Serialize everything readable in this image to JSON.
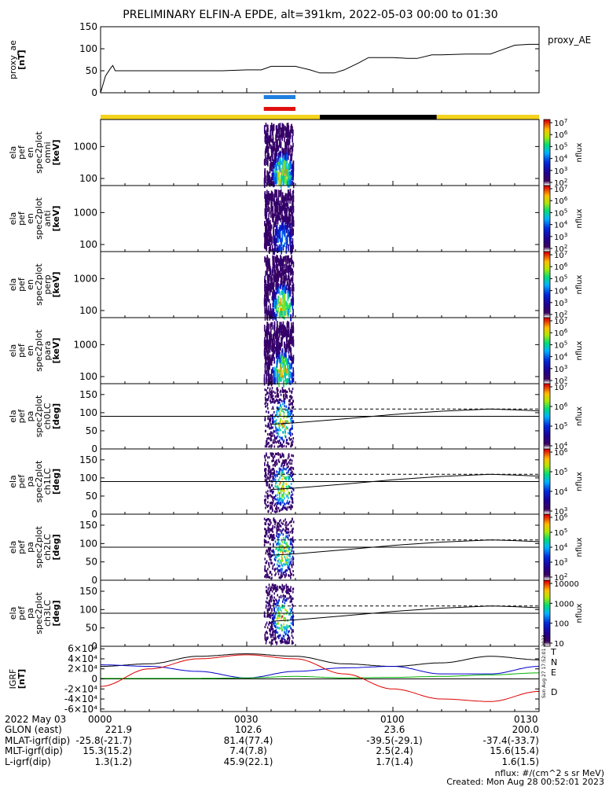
{
  "title": "PRELIMINARY ELFIN-A EPDE, alt=391km, 2022-05-03 00:00 to 01:30",
  "time_axis": {
    "date_label": "2022 May 03",
    "ticks": [
      "0000",
      "0030",
      "0100",
      "0130"
    ],
    "minutes": [
      0,
      30,
      60,
      90
    ]
  },
  "rows": [
    {
      "label": "GLON (east)",
      "values": [
        "221.9",
        "102.6",
        "23.6",
        "200.0"
      ]
    },
    {
      "label": "MLAT-igrf(dip)",
      "values": [
        "-25.8(-21.7)",
        "81.4(77.4)",
        "-39.5(-29.1)",
        "-37.4(-33.7)"
      ]
    },
    {
      "label": "MLT-igrf(dip)",
      "values": [
        "15.3(15.2)",
        "7.4(7.8)",
        "2.5(2.4)",
        "15.6(15.4)"
      ]
    },
    {
      "label": "L-igrf(dip)",
      "values": [
        "1.3(1.2)",
        "45.9(22.1)",
        "1.7(1.4)",
        "1.6(1.5)"
      ]
    }
  ],
  "footnote_units": "nflux: #/(cm^2 s sr MeV)",
  "footnote_created": "Created: Mon Aug 28 00:52:01 2023",
  "side_stamp": "Sun Aug 27 17:52:01 2023",
  "colors": {
    "orbit_bar_day": "#f4d31c",
    "orbit_bar_night": "#000000",
    "marker_top": "#1e7fe0",
    "marker_bottom": "#e01010"
  },
  "orbit_bar": [
    {
      "start": 0,
      "end": 30,
      "color": "#f4d31c"
    },
    {
      "start": 30,
      "end": 45,
      "color": "#f4d31c"
    },
    {
      "start": 45,
      "end": 69,
      "color": "#000000"
    },
    {
      "start": 69,
      "end": 90,
      "color": "#f4d31c"
    }
  ],
  "markers": [
    {
      "start": 33.5,
      "end": 40,
      "color": "#1e7fe0"
    },
    {
      "start": 33.5,
      "end": 40,
      "color": "#e01010"
    }
  ],
  "chart_data": [
    {
      "type": "line",
      "panel": "proxy_ae",
      "ylabel": [
        "proxy_ae",
        "[nT]"
      ],
      "legend": "proxy_AE",
      "ylim": [
        0,
        150
      ],
      "yticks": [
        0,
        50,
        100,
        150
      ],
      "x": [
        0,
        1,
        2,
        2.5,
        3,
        5,
        10,
        15,
        20,
        25,
        30,
        33,
        35,
        40,
        43,
        45,
        48,
        50,
        53,
        55,
        60,
        63,
        65,
        68,
        70,
        75,
        80,
        85,
        88,
        90
      ],
      "values": [
        0,
        38,
        55,
        62,
        50,
        50,
        50,
        50,
        50,
        50,
        52,
        52,
        60,
        60,
        52,
        45,
        45,
        52,
        68,
        80,
        80,
        78,
        78,
        86,
        86,
        88,
        88,
        108,
        110,
        110
      ]
    },
    {
      "type": "heatmap",
      "panel": "spec_omni",
      "ylabel": [
        "ela",
        "pef",
        "en",
        "spec2plot",
        "omni",
        "[keV]"
      ],
      "scale": "log",
      "ylim": [
        60,
        7000
      ],
      "yticks": [
        100,
        1000
      ],
      "colorbar": {
        "label": "nflux",
        "type": "log",
        "ticks": [
          "10^2",
          "10^3",
          "10^4",
          "10^5",
          "10^6",
          "10^7"
        ]
      },
      "activity": [
        33.5,
        39.5
      ]
    },
    {
      "type": "heatmap",
      "panel": "spec_anti",
      "ylabel": [
        "ela",
        "pef",
        "en",
        "spec2plot",
        "anti",
        "[keV]"
      ],
      "scale": "log",
      "ylim": [
        60,
        7000
      ],
      "yticks": [
        100,
        1000
      ],
      "colorbar": {
        "label": "nflux",
        "type": "log",
        "ticks": [
          "10^2",
          "10^3",
          "10^4",
          "10^5",
          "10^6",
          "10^7"
        ]
      },
      "activity": [
        33.5,
        39.5
      ]
    },
    {
      "type": "heatmap",
      "panel": "spec_perp",
      "ylabel": [
        "ela",
        "pef",
        "en",
        "spec2plot",
        "perp",
        "[keV]"
      ],
      "scale": "log",
      "ylim": [
        60,
        7000
      ],
      "yticks": [
        100,
        1000
      ],
      "colorbar": {
        "label": "nflux",
        "type": "log",
        "ticks": [
          "10^2",
          "10^3",
          "10^4",
          "10^5",
          "10^6",
          "10^7"
        ]
      },
      "activity": [
        33.5,
        39.5
      ]
    },
    {
      "type": "heatmap",
      "panel": "spec_para",
      "ylabel": [
        "ela",
        "pef",
        "en",
        "spec2plot",
        "para",
        "[keV]"
      ],
      "scale": "log",
      "ylim": [
        60,
        7000
      ],
      "yticks": [
        100,
        1000
      ],
      "colorbar": {
        "label": "nflux",
        "type": "log",
        "ticks": [
          "10^2",
          "10^3",
          "10^4",
          "10^5",
          "10^6",
          "10^7"
        ]
      },
      "activity": [
        33.5,
        39.5
      ]
    },
    {
      "type": "heatmap",
      "panel": "pa_ch0",
      "ylabel": [
        "ela",
        "pef",
        "pa",
        "spec2plot",
        "ch0LC",
        "[deg]"
      ],
      "ylim": [
        0,
        180
      ],
      "yticks": [
        0,
        50,
        100,
        150
      ],
      "colorbar": {
        "label": "nflux",
        "type": "log",
        "ticks": [
          "10^4",
          "10^5",
          "10^6",
          "10^7"
        ]
      },
      "loss_cone_x": [
        35,
        40,
        50,
        60,
        70,
        80,
        85,
        90
      ],
      "loss_cone_values": [
        68,
        72,
        83,
        95,
        104,
        110,
        108,
        105
      ],
      "anti_loss_cone_x": [
        35,
        90
      ],
      "anti_loss_cone_values": [
        110,
        110
      ],
      "activity": [
        33.5,
        39.5
      ]
    },
    {
      "type": "heatmap",
      "panel": "pa_ch1",
      "ylabel": [
        "ela",
        "pef",
        "pa",
        "spec2plot",
        "ch1LC",
        "[deg]"
      ],
      "ylim": [
        0,
        180
      ],
      "yticks": [
        0,
        50,
        100,
        150
      ],
      "colorbar": {
        "label": "nflux",
        "type": "log",
        "ticks": [
          "10^3",
          "10^4",
          "10^5",
          "10^6"
        ]
      },
      "loss_cone_x": [
        35,
        40,
        50,
        60,
        70,
        80,
        85,
        90
      ],
      "loss_cone_values": [
        68,
        72,
        83,
        95,
        104,
        110,
        108,
        105
      ],
      "anti_loss_cone_x": [
        35,
        90
      ],
      "anti_loss_cone_values": [
        110,
        110
      ],
      "activity": [
        33.5,
        39.5
      ]
    },
    {
      "type": "heatmap",
      "panel": "pa_ch2",
      "ylabel": [
        "ela",
        "pef",
        "pa",
        "spec2plot",
        "ch2LC",
        "[deg]"
      ],
      "ylim": [
        0,
        180
      ],
      "yticks": [
        0,
        50,
        100,
        150
      ],
      "colorbar": {
        "label": "nflux",
        "type": "log",
        "ticks": [
          "10^2",
          "10^3",
          "10^4",
          "10^5",
          "10^6"
        ]
      },
      "loss_cone_x": [
        35,
        40,
        50,
        60,
        70,
        80,
        85,
        90
      ],
      "loss_cone_values": [
        68,
        72,
        83,
        95,
        104,
        110,
        108,
        105
      ],
      "anti_loss_cone_x": [
        35,
        90
      ],
      "anti_loss_cone_values": [
        110,
        110
      ],
      "activity": [
        33.5,
        39.5
      ]
    },
    {
      "type": "heatmap",
      "panel": "pa_ch3",
      "ylabel": [
        "ela",
        "pef",
        "pa",
        "spec2plot",
        "ch3LC",
        "[deg]"
      ],
      "ylim": [
        0,
        180
      ],
      "yticks": [
        0,
        50,
        100,
        150
      ],
      "colorbar": {
        "label": "nflux",
        "type": "log",
        "ticks": [
          "10",
          "100",
          "1000",
          "10000"
        ]
      },
      "loss_cone_x": [
        35,
        40,
        50,
        60,
        70,
        80,
        85,
        90
      ],
      "loss_cone_values": [
        68,
        72,
        83,
        95,
        104,
        110,
        108,
        105
      ],
      "anti_loss_cone_x": [
        35,
        90
      ],
      "anti_loss_cone_values": [
        110,
        110
      ],
      "activity": [
        33.5,
        39.5
      ]
    },
    {
      "type": "line",
      "panel": "igrf",
      "ylabel": [
        "IGRF",
        "[nT]"
      ],
      "ylim": [
        -65000,
        65000
      ],
      "yticks": [
        -60000,
        -40000,
        -20000,
        0,
        20000,
        40000,
        60000
      ],
      "ytick_labels": [
        "-6×10⁴",
        "-4×10⁴",
        "-2×10⁴",
        "0",
        "2×10⁴",
        "4×10⁴",
        "6×10⁴"
      ],
      "series": [
        {
          "name": "T",
          "color": "#000000",
          "x": [
            0,
            10,
            20,
            30,
            40,
            50,
            60,
            70,
            80,
            90
          ],
          "values": [
            25000,
            30000,
            45000,
            50000,
            45000,
            30000,
            25000,
            32000,
            45000,
            38000
          ]
        },
        {
          "name": "N",
          "color": "#0000cc",
          "x": [
            0,
            10,
            20,
            30,
            40,
            50,
            60,
            70,
            80,
            90
          ],
          "values": [
            28000,
            25000,
            15000,
            2000,
            15000,
            22000,
            25000,
            10000,
            10000,
            25000
          ]
        },
        {
          "name": "E",
          "color": "#00b000",
          "x": [
            0,
            10,
            20,
            30,
            40,
            50,
            60,
            70,
            80,
            90
          ],
          "values": [
            1000,
            1000,
            1000,
            2000,
            5000,
            2000,
            3000,
            5000,
            8000,
            12000
          ]
        },
        {
          "name": "D",
          "color": "#dd0000",
          "x": [
            0,
            10,
            20,
            30,
            40,
            50,
            60,
            70,
            80,
            90
          ],
          "values": [
            -15000,
            20000,
            40000,
            48000,
            40000,
            10000,
            -20000,
            -40000,
            -45000,
            -25000
          ]
        }
      ]
    }
  ]
}
